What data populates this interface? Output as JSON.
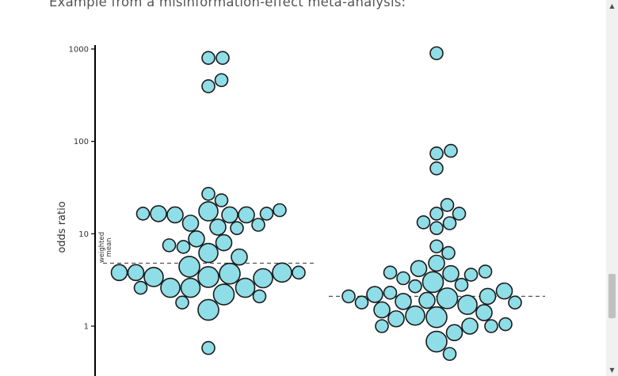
{
  "page": {
    "intro_text": "Example from a misinformation-effect meta-analysis:"
  },
  "scrollbar": {
    "up_arrow_icon": "triangle-up-icon",
    "down_arrow_icon": "triangle-down-icon"
  },
  "colors": {
    "bubble_fill": "#8fdde6",
    "bubble_stroke": "#1a1a1a",
    "axis": "#000000",
    "text": "#333333",
    "mean_line": "#555555"
  },
  "chart_data": {
    "type": "scatter",
    "ylabel": "odds ratio",
    "yscale": "log",
    "yticks": [
      1,
      10,
      100,
      1000
    ],
    "ytick_labels": [
      "1",
      "10",
      "100",
      "1000"
    ],
    "ylim": [
      0.25,
      1200
    ],
    "mean_label_lines": [
      "weighted",
      "mean"
    ],
    "groups": [
      {
        "weighted_mean": 4.8,
        "points": [
          {
            "or": 800,
            "w": 1
          },
          {
            "or": 800,
            "w": 1
          },
          {
            "or": 460,
            "w": 1
          },
          {
            "or": 395,
            "w": 1
          },
          {
            "or": 27,
            "w": 1
          },
          {
            "or": 23,
            "w": 1
          },
          {
            "or": 16.5,
            "w": 1
          },
          {
            "or": 16,
            "w": 2
          },
          {
            "or": 16,
            "w": 2
          },
          {
            "or": 16,
            "w": 2
          },
          {
            "or": 17.5,
            "w": 3
          },
          {
            "or": 16.5,
            "w": 2
          },
          {
            "or": 18,
            "w": 1
          },
          {
            "or": 16.5,
            "w": 1
          },
          {
            "or": 12.5,
            "w": 1
          },
          {
            "or": 13,
            "w": 2
          },
          {
            "or": 11.5,
            "w": 1
          },
          {
            "or": 11.8,
            "w": 2
          },
          {
            "or": 8.8,
            "w": 2
          },
          {
            "or": 8.0,
            "w": 2
          },
          {
            "or": 7.5,
            "w": 1
          },
          {
            "or": 7.2,
            "w": 1
          },
          {
            "or": 6.2,
            "w": 3
          },
          {
            "or": 5.6,
            "w": 2
          },
          {
            "or": 4.4,
            "w": 4
          },
          {
            "or": 3.8,
            "w": 2
          },
          {
            "or": 3.7,
            "w": 4
          },
          {
            "or": 3.8,
            "w": 2
          },
          {
            "or": 3.8,
            "w": 1
          },
          {
            "or": 3.8,
            "w": 3
          },
          {
            "or": 3.4,
            "w": 4
          },
          {
            "or": 3.4,
            "w": 3
          },
          {
            "or": 3.3,
            "w": 3
          },
          {
            "or": 2.6,
            "w": 3
          },
          {
            "or": 2.6,
            "w": 3
          },
          {
            "or": 2.6,
            "w": 3
          },
          {
            "or": 2.6,
            "w": 1
          },
          {
            "or": 2.2,
            "w": 4
          },
          {
            "or": 2.1,
            "w": 1
          },
          {
            "or": 1.8,
            "w": 1
          },
          {
            "or": 1.5,
            "w": 4
          },
          {
            "or": 0.58,
            "w": 1
          }
        ]
      },
      {
        "weighted_mean": 2.1,
        "points": [
          {
            "or": 900,
            "w": 1
          },
          {
            "or": 79,
            "w": 1
          },
          {
            "or": 74,
            "w": 1
          },
          {
            "or": 51,
            "w": 1
          },
          {
            "or": 20.5,
            "w": 1
          },
          {
            "or": 16.5,
            "w": 1
          },
          {
            "or": 16.5,
            "w": 1
          },
          {
            "or": 13.3,
            "w": 1
          },
          {
            "or": 13,
            "w": 1
          },
          {
            "or": 11.5,
            "w": 1
          },
          {
            "or": 7.3,
            "w": 1
          },
          {
            "or": 6.2,
            "w": 1
          },
          {
            "or": 4.8,
            "w": 2
          },
          {
            "or": 4.2,
            "w": 2
          },
          {
            "or": 3.9,
            "w": 1
          },
          {
            "or": 3.8,
            "w": 1
          },
          {
            "or": 3.7,
            "w": 2
          },
          {
            "or": 3.6,
            "w": 1
          },
          {
            "or": 3.3,
            "w": 1
          },
          {
            "or": 3.0,
            "w": 4
          },
          {
            "or": 2.8,
            "w": 1
          },
          {
            "or": 2.7,
            "w": 1
          },
          {
            "or": 2.4,
            "w": 2
          },
          {
            "or": 2.3,
            "w": 1
          },
          {
            "or": 2.2,
            "w": 2
          },
          {
            "or": 2.1,
            "w": 2
          },
          {
            "or": 2.1,
            "w": 1
          },
          {
            "or": 2.0,
            "w": 4
          },
          {
            "or": 1.9,
            "w": 2
          },
          {
            "or": 1.85,
            "w": 2
          },
          {
            "or": 1.8,
            "w": 1
          },
          {
            "or": 1.8,
            "w": 1
          },
          {
            "or": 1.7,
            "w": 3
          },
          {
            "or": 1.5,
            "w": 2
          },
          {
            "or": 1.4,
            "w": 2
          },
          {
            "or": 1.3,
            "w": 3
          },
          {
            "or": 1.25,
            "w": 4
          },
          {
            "or": 1.2,
            "w": 2
          },
          {
            "or": 1.05,
            "w": 1
          },
          {
            "or": 1.0,
            "w": 1
          },
          {
            "or": 1.0,
            "w": 2
          },
          {
            "or": 1.0,
            "w": 1
          },
          {
            "or": 0.85,
            "w": 2
          },
          {
            "or": 0.68,
            "w": 4
          },
          {
            "or": 0.5,
            "w": 1
          }
        ]
      }
    ]
  }
}
